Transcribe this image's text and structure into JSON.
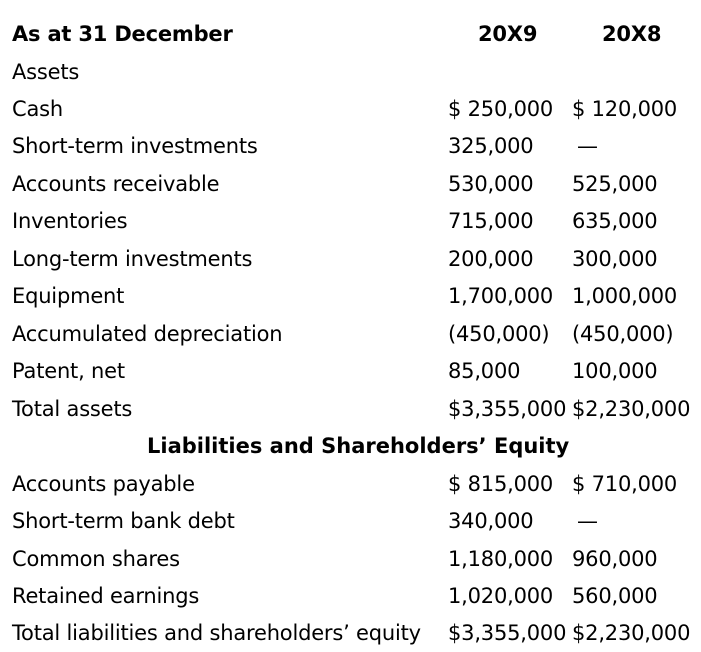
{
  "header": {
    "label": "As at 31 December",
    "col1": "20X9",
    "col2": "20X8"
  },
  "assets_title": "Assets",
  "assets": [
    {
      "label": "Cash",
      "y20x9": "$ 250,000",
      "y20x8": "$ 120,000"
    },
    {
      "label": "Short-term investments",
      "y20x9": "325,000",
      "y20x8": "—"
    },
    {
      "label": "Accounts receivable",
      "y20x9": "530,000",
      "y20x8": "525,000"
    },
    {
      "label": "Inventories",
      "y20x9": "715,000",
      "y20x8": "635,000"
    },
    {
      "label": "Long-term investments",
      "y20x9": "200,000",
      "y20x8": "300,000"
    },
    {
      "label": "Equipment",
      "y20x9": "1,700,000",
      "y20x8": "1,000,000"
    },
    {
      "label": "Accumulated depreciation",
      "y20x9": "(450,000)",
      "y20x8": "(450,000)"
    },
    {
      "label": "Patent, net",
      "y20x9": "85,000",
      "y20x8": "100,000"
    },
    {
      "label": "Total assets",
      "y20x9": "$3,355,000",
      "y20x8": "$2,230,000"
    }
  ],
  "liabilities_title": "Liabilities and Shareholders’ Equity",
  "liabilities": [
    {
      "label": "Accounts payable",
      "y20x9": "$ 815,000",
      "y20x8": "$ 710,000"
    },
    {
      "label": "Short-term bank debt",
      "y20x9": "340,000",
      "y20x8": "—"
    },
    {
      "label": "Common shares",
      "y20x9": "1,180,000",
      "y20x8": "960,000"
    },
    {
      "label": "Retained earnings",
      "y20x9": "1,020,000",
      "y20x8": "560,000"
    },
    {
      "label": "Total liabilities and shareholders’ equity",
      "y20x9": "$3,355,000",
      "y20x8": "$2,230,000"
    }
  ]
}
